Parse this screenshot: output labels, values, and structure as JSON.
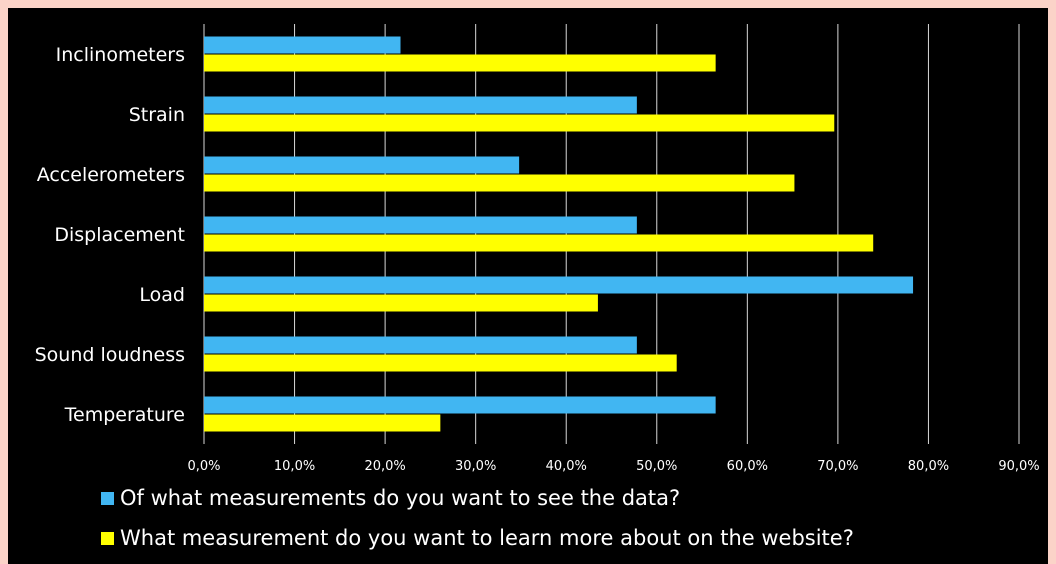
{
  "chart_data": {
    "type": "bar",
    "orientation": "horizontal",
    "categories": [
      "Inclinometers",
      "Strain",
      "Accelerometers",
      "Displacement",
      "Load",
      "Sound loudness",
      "Temperature"
    ],
    "series": [
      {
        "name": "Of what measurements do you want to see the data?",
        "color": "#41b6f2",
        "values": [
          21.7,
          47.8,
          34.8,
          47.8,
          78.3,
          47.8,
          56.5
        ]
      },
      {
        "name": "What measurement do you want to learn more about on the website?",
        "color": "#ffff00",
        "values": [
          56.5,
          69.6,
          65.2,
          73.9,
          43.5,
          52.2,
          26.1
        ]
      }
    ],
    "xlim": [
      0,
      90
    ],
    "xticks": [
      "0,0%",
      "10,0%",
      "20,0%",
      "30,0%",
      "40,0%",
      "50,0%",
      "60,0%",
      "70,0%",
      "80,0%",
      "90,0%"
    ],
    "grid": true,
    "legend_position": "bottom",
    "title": "",
    "xlabel": "",
    "ylabel": ""
  },
  "colors": {
    "background": "#000000",
    "frame": "#fbd3c8",
    "text": "#ffffff",
    "grid": "#d9d9d9"
  }
}
